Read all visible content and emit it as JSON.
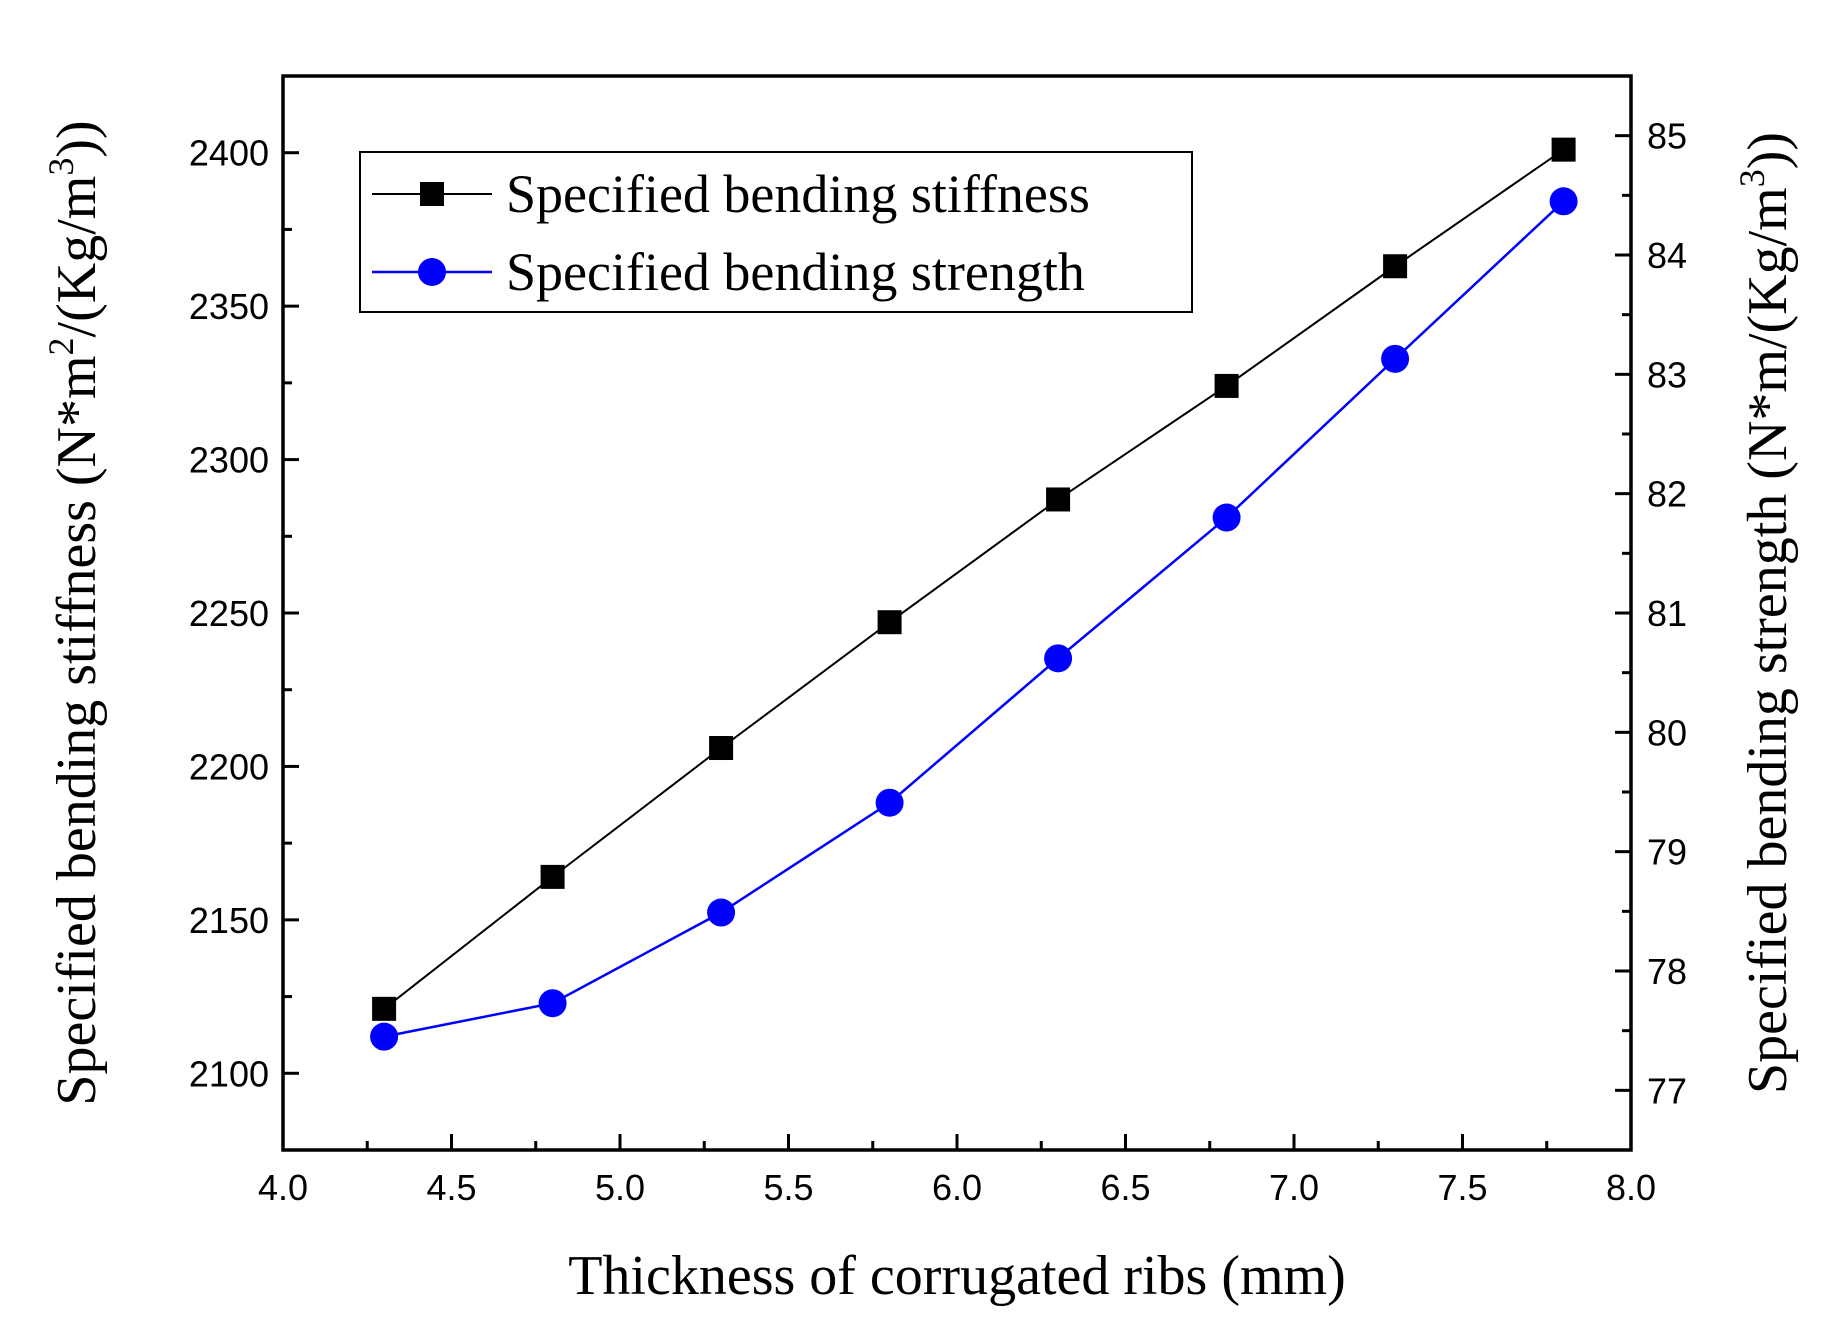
{
  "chart_data": {
    "type": "line",
    "title": "",
    "xlabel": "Thickness of corrugated ribs (mm)",
    "ylabel_left": {
      "prefix": "Specified bending stiffness (N*m",
      "sup1": "2",
      "mid": "/(Kg/m",
      "sup2": "3",
      "suffix": "))"
    },
    "ylabel_right": {
      "prefix": "Specified bending strength (N*m/(Kg/m",
      "sup": "3",
      "suffix": "))"
    },
    "xlim": [
      4.0,
      8.0
    ],
    "ylim_left": [
      2075,
      2425
    ],
    "ylim_right": [
      76.5,
      85.5
    ],
    "x_ticks": [
      "4.0",
      "4.5",
      "5.0",
      "5.5",
      "6.0",
      "6.5",
      "7.0",
      "7.5",
      "8.0"
    ],
    "y_left_ticks": [
      "2100",
      "2150",
      "2200",
      "2250",
      "2300",
      "2350",
      "2400"
    ],
    "y_right_ticks": [
      "77",
      "78",
      "79",
      "80",
      "81",
      "82",
      "83",
      "84",
      "85"
    ],
    "x": [
      4.3,
      4.8,
      5.3,
      5.8,
      6.3,
      6.8,
      7.3,
      7.8
    ],
    "series": [
      {
        "name": "Specified bending stiffness",
        "axis": "left",
        "marker": "square",
        "color": "#000000",
        "values": [
          2121,
          2164,
          2206,
          2247,
          2287,
          2324,
          2363,
          2401
        ]
      },
      {
        "name": "Specified bending strength",
        "axis": "right",
        "marker": "circle",
        "color": "#0000ff",
        "values": [
          77.45,
          77.73,
          78.49,
          79.41,
          80.62,
          81.8,
          83.13,
          84.45
        ]
      }
    ],
    "legend_position": "top-left",
    "grid": false
  }
}
